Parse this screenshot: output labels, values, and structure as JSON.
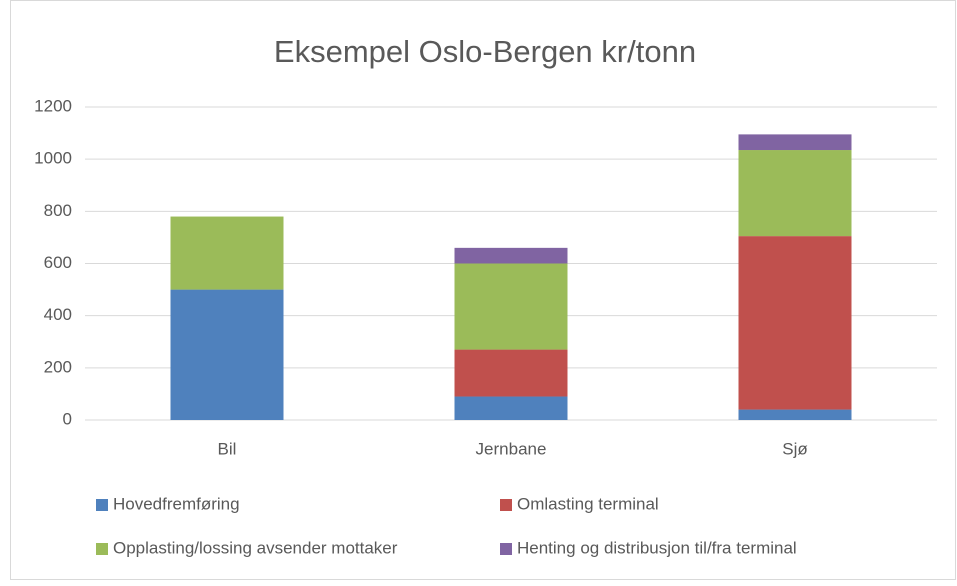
{
  "chart_data": {
    "type": "stacked_bar",
    "title": "Eksempel Oslo-Bergen kr/tonn",
    "categories": [
      "Bil",
      "Jernbane",
      "Sjø"
    ],
    "series": [
      {
        "name": "Hovedfremføring",
        "color": "#4f81bd",
        "values": [
          500,
          90,
          40
        ]
      },
      {
        "name": "Omlasting terminal",
        "color": "#c0504d",
        "values": [
          0,
          180,
          665
        ]
      },
      {
        "name": "Opplasting/lossing avsender mottaker",
        "color": "#9bbb59",
        "values": [
          280,
          330,
          330
        ]
      },
      {
        "name": "Henting og distribusjon til/fra terminal",
        "color": "#8064a2",
        "values": [
          0,
          60,
          60
        ]
      }
    ],
    "ylim": [
      0,
      1200
    ],
    "yticks": [
      0,
      200,
      400,
      600,
      800,
      1000,
      1200
    ],
    "grid": true,
    "legend": "bottom"
  }
}
